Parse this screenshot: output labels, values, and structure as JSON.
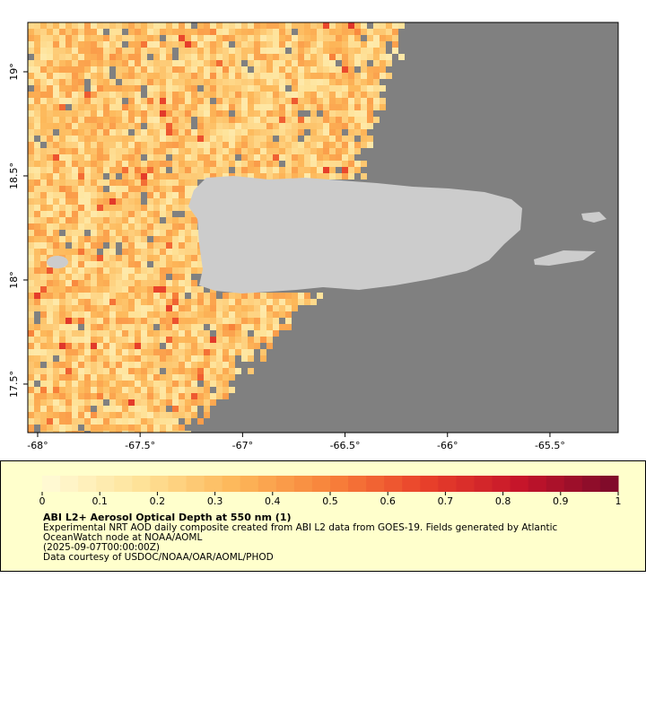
{
  "map": {
    "xlim": [
      -68.048,
      -65.167
    ],
    "ylim": [
      17.267,
      19.237
    ],
    "xticks": [
      {
        "value": -68,
        "label": "-68°"
      },
      {
        "value": -67.5,
        "label": "-67.5°"
      },
      {
        "value": -67,
        "label": "-67°"
      },
      {
        "value": -66.5,
        "label": "-66.5°"
      },
      {
        "value": -66,
        "label": "-66°"
      },
      {
        "value": -65.5,
        "label": "-65.5°"
      }
    ],
    "yticks": [
      {
        "value": 17.5,
        "label": "17.5°"
      },
      {
        "value": 18,
        "label": "18°"
      },
      {
        "value": 18.5,
        "label": "18.5°"
      },
      {
        "value": 19,
        "label": "19°"
      }
    ]
  },
  "colorbar": {
    "range": [
      0,
      1
    ],
    "ticks": [
      0,
      0.1,
      0.2,
      0.3,
      0.4,
      0.5,
      0.6,
      0.7,
      0.8,
      0.9,
      1
    ],
    "colors": [
      "#fffbd8",
      "#fee39a",
      "#fdb85a",
      "#f8823a",
      "#e8402a",
      "#c5142a",
      "#7a0a2a"
    ]
  },
  "caption": {
    "title": "ABI L2+ Aerosol Optical Depth at 550 nm (1)",
    "lines": [
      "Experimental NRT AOD daily composite created from ABI L2 data from GOES-19. Fields generated by Atlantic",
      "OceanWatch node at NOAA/AOML",
      "(2025-09-07T00:00:00Z)",
      "Data courtesy of USDOC/NOAA/OAR/AOML/PHOD"
    ]
  }
}
